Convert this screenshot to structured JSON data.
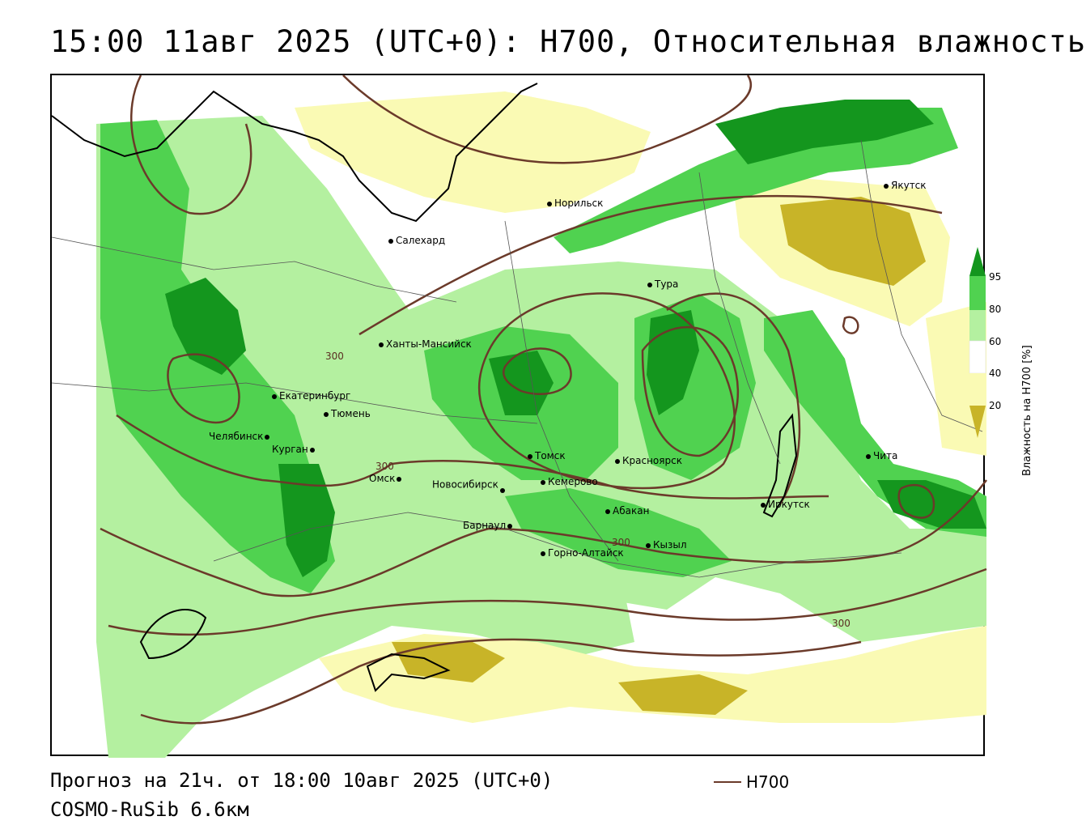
{
  "title": "15:00 11авг 2025 (UTC+0): H700, Относительная влажность",
  "map": {
    "cities": [
      {
        "name": "Норильск"
      },
      {
        "name": "Якутск"
      },
      {
        "name": "Салехард"
      },
      {
        "name": "Тура"
      },
      {
        "name": "Ханты-Мансийск"
      },
      {
        "name": "Екатеринбург"
      },
      {
        "name": "Тюмень"
      },
      {
        "name": "Челябинск"
      },
      {
        "name": "Курган"
      },
      {
        "name": "Омск"
      },
      {
        "name": "Новосибирск"
      },
      {
        "name": "Томск"
      },
      {
        "name": "Кемерово"
      },
      {
        "name": "Красноярск"
      },
      {
        "name": "Барнаул"
      },
      {
        "name": "Абакан"
      },
      {
        "name": "Кызыл"
      },
      {
        "name": "Горно-Алтайск"
      },
      {
        "name": "Иркутск"
      },
      {
        "name": "Чита"
      }
    ],
    "contour_labels": [
      "300",
      "300",
      "300",
      "300"
    ],
    "colors": {
      "rh_below_20": "#c8b428",
      "rh_20_40": "#fafab4",
      "rh_40_60": "#ffffff",
      "rh_60_80": "#b4f0a0",
      "rh_80_95": "#50d250",
      "rh_95_plus": "#14961e",
      "h700_contour": "#6b3a2a",
      "borders": "#000000"
    }
  },
  "legend": {
    "ticks": [
      "95",
      "80",
      "60",
      "40",
      "20"
    ],
    "title": "Влажность на H700 [%]"
  },
  "footer": {
    "forecast": "Прогноз на 21ч. от 18:00 10авг 2025 (UTC+0)",
    "model": "COSMO-RuSib 6.6км",
    "contour_key": "H700"
  }
}
